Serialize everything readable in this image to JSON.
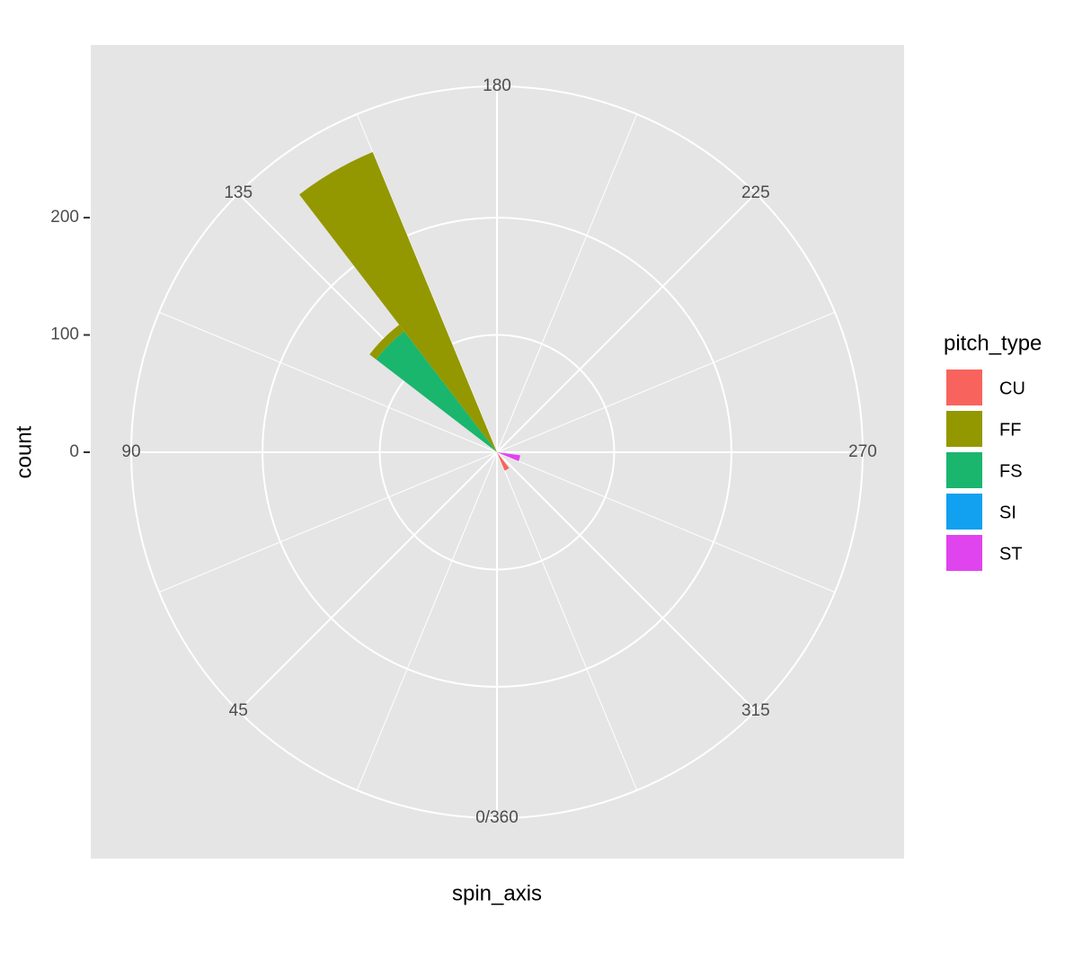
{
  "chart_data": {
    "type": "polar_bar",
    "x_label": "spin_axis",
    "y_label": "count",
    "legend_title": "pitch_type",
    "legend_position": "right",
    "bin_width": 15,
    "series": [
      {
        "name": "ST",
        "color": "#E044EE",
        "x": [
          285
        ],
        "values": [
          20
        ]
      },
      {
        "name": "SI",
        "color": "#12A0F0",
        "x": [],
        "values": []
      },
      {
        "name": "FS",
        "color": "#1AB66E",
        "x": [
          135
        ],
        "values": [
          130
        ]
      },
      {
        "name": "FF",
        "color": "#939800",
        "x": [
          135,
          150
        ],
        "values": [
          7,
          277
        ]
      },
      {
        "name": "CU",
        "color": "#F8645D",
        "x": [
          330
        ],
        "values": [
          17
        ]
      }
    ],
    "xlim": [
      0,
      360
    ],
    "xticks": [
      {
        "value": 0,
        "label": "0/360"
      },
      45,
      90,
      135,
      180,
      225,
      270,
      315
    ],
    "xminor": [
      22.5,
      67.5,
      112.5,
      157.5,
      202.5,
      247.5,
      292.5,
      337.5
    ],
    "ylim": [
      0,
      312
    ],
    "yticks": [
      0,
      100,
      200
    ],
    "grid": true
  }
}
